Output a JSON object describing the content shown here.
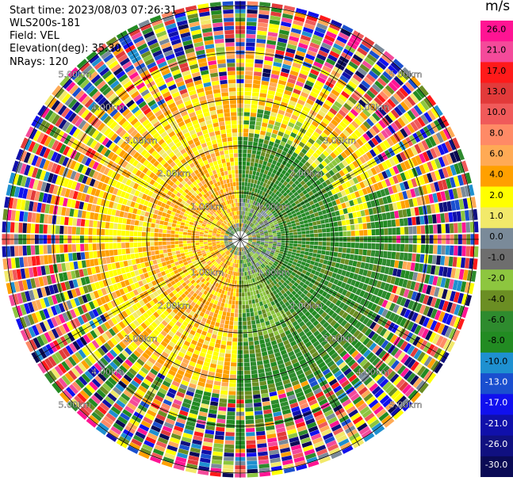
{
  "header": {
    "start_time": "Start time: 2023/08/03 07:26:31",
    "site": "WLS200s-181",
    "field": "Field: VEL",
    "elevation": "Elevation(deg): 35.30",
    "nrays": "NRays: 120"
  },
  "chart_data": {
    "type": "heatmap",
    "projection": "polar-ppi",
    "nrays": 120,
    "range_rings_km": [
      1,
      2,
      3,
      4,
      5
    ],
    "ring_labels": [
      "1.00km",
      "2.00km",
      "3.00km",
      "4.00km",
      "5.00km"
    ],
    "spoke_angles_deg": [
      0,
      30,
      60,
      90,
      120,
      150,
      180,
      210,
      240,
      270,
      300,
      330
    ],
    "colorbar": {
      "unit": "m/s",
      "ticks": [
        "26.0",
        "21.0",
        "17.0",
        "13.0",
        "10.0",
        "8.0",
        "6.0",
        "4.0",
        "2.0",
        "1.0",
        "0.0",
        "-1.0",
        "-2.0",
        "-4.0",
        "-6.0",
        "-8.0",
        "-10.0",
        "-13.0",
        "-17.0",
        "-21.0",
        "-26.0",
        "-30.0"
      ],
      "colors": [
        "#ff1493",
        "#f44a9a",
        "#ff1a1a",
        "#e23a3a",
        "#f05a5a",
        "#ff8a66",
        "#ffaa55",
        "#ffa000",
        "#ffff00",
        "#f2e96a",
        "#7a8a99",
        "#6e6e6e",
        "#8dc63f",
        "#6b8e23",
        "#2e8b2e",
        "#228b22",
        "#1e90d0",
        "#1a4fcf",
        "#1010ee",
        "#1010aa",
        "#101080",
        "#0a0a55"
      ]
    }
  }
}
